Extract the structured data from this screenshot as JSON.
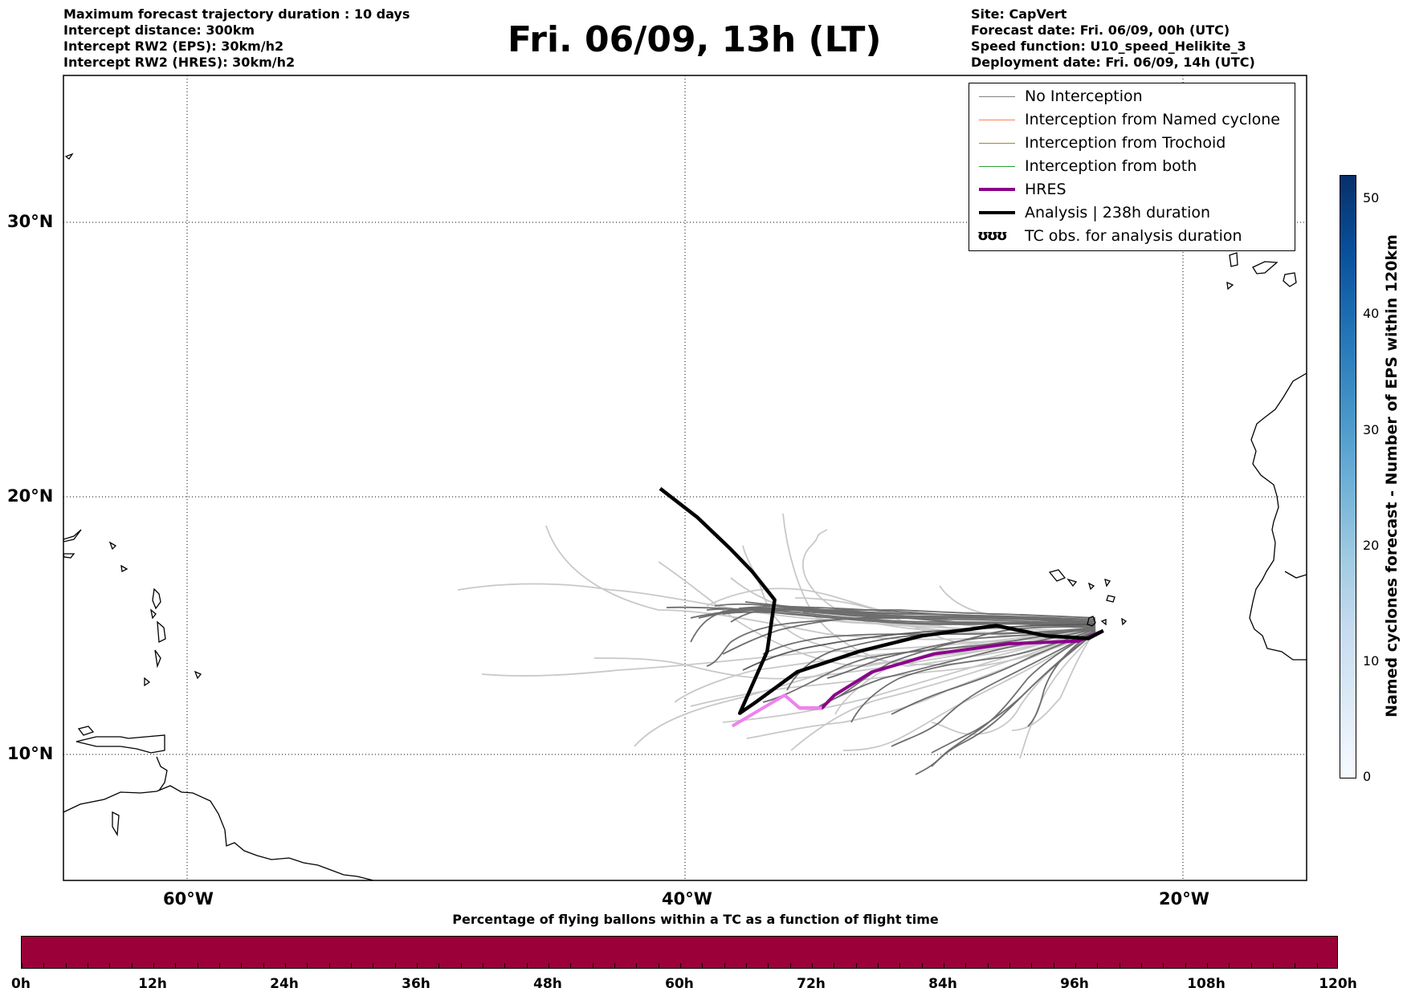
{
  "header_left": [
    "Maximum forecast trajectory duration : 10 days",
    "Intercept distance: 300km",
    "Intercept RW2 (EPS):  30km/h2",
    "Intercept RW2 (HRES): 30km/h2"
  ],
  "header_right": [
    "Site: CapVert",
    "Forecast date: Fri. 06/09, 00h (UTC)",
    "Speed function: U10_speed_Helikite_3",
    "Deployment date: Fri. 06/09, 14h (UTC)"
  ],
  "title": "Fri. 06/09, 13h (LT)",
  "map": {
    "lat_labels": [
      "30°N",
      "20°N",
      "10°N"
    ],
    "lon_labels": [
      "60°W",
      "40°W",
      "20°W"
    ],
    "grid": true,
    "extent": {
      "lon_min": -65,
      "lon_max": -15,
      "lat_min": 5.5,
      "lat_max": 35
    }
  },
  "legend": {
    "position": "top-right",
    "items": [
      {
        "label": "No Interception",
        "color": "#808080",
        "style": "thin-line"
      },
      {
        "label": "Interception from Named cyclone",
        "color": "#ff7f50",
        "style": "thin-line"
      },
      {
        "label": "Interception from Trochoid",
        "color": "#9c8a2e",
        "style": "thin-line"
      },
      {
        "label": "Interception from both",
        "color": "#2ca02c",
        "style": "thin-line"
      },
      {
        "label": "HRES",
        "color": "#8b008b",
        "style": "thick-line"
      },
      {
        "label": "Analysis | 238h duration",
        "color": "#000000",
        "style": "thick-line"
      },
      {
        "label": "TC obs. for analysis duration",
        "glyph": "ʊʊʊ",
        "style": "glyph"
      }
    ]
  },
  "chart_data": {
    "type": "map-trajectories",
    "analysis_track_lonlat": [
      [
        -23.2,
        14.8
      ],
      [
        -23.8,
        14.5
      ],
      [
        -25.5,
        14.6
      ],
      [
        -27.5,
        15.0
      ],
      [
        -30.5,
        14.6
      ],
      [
        -33.0,
        14.0
      ],
      [
        -35.5,
        13.2
      ],
      [
        -37.2,
        12.0
      ],
      [
        -37.8,
        11.6
      ],
      [
        -36.7,
        14.0
      ],
      [
        -36.4,
        16.0
      ],
      [
        -37.3,
        17.1
      ],
      [
        -38.2,
        18.0
      ],
      [
        -39.5,
        19.2
      ],
      [
        -41.0,
        20.3
      ]
    ],
    "hres_track_lonlat": [
      [
        -23.2,
        14.8
      ],
      [
        -24.2,
        14.4
      ],
      [
        -27.0,
        14.3
      ],
      [
        -30.0,
        13.9
      ],
      [
        -32.5,
        13.2
      ],
      [
        -34.0,
        12.3
      ],
      [
        -34.5,
        11.8
      ],
      [
        -35.4,
        11.8
      ],
      [
        -36.0,
        12.3
      ],
      [
        -38.1,
        11.1
      ]
    ],
    "colorbar_right": {
      "label": "Named cyclones forecast - Number of EPS within 120km",
      "ticks": [
        "0",
        "10",
        "20",
        "30",
        "40",
        "50"
      ],
      "range": [
        0,
        52
      ],
      "colormap": "Blues"
    },
    "colorbar_bottom": {
      "title": "Percentage of flying ballons within a TC as a function of flight time",
      "ticks": [
        "0h",
        "12h",
        "24h",
        "36h",
        "48h",
        "60h",
        "72h",
        "84h",
        "96h",
        "108h",
        "120h"
      ],
      "fill_color": "#9c0039"
    }
  }
}
